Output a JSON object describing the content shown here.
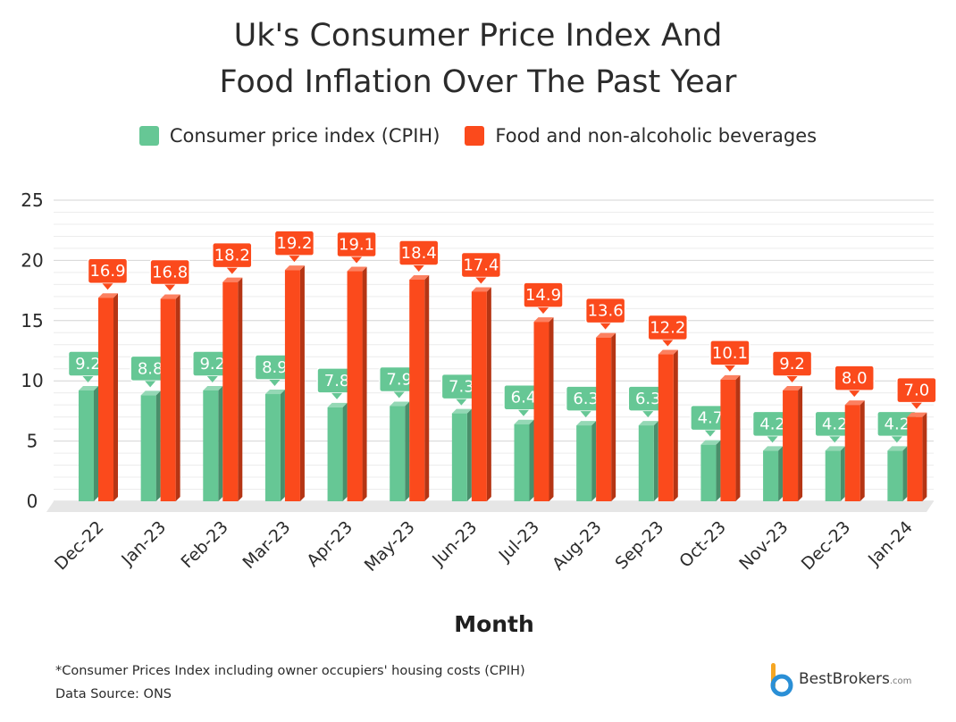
{
  "title_line1": "Uk's Consumer Price Index And",
  "title_line2": "Food Inflation Over The Past Year",
  "legend": [
    {
      "label": "Consumer price index (CPIH)",
      "color": "#66c795"
    },
    {
      "label": "Food and non-alcoholic beverages",
      "color": "#fb4a1c"
    }
  ],
  "footnote_line1": "*Consumer Prices Index including owner occupiers' housing costs (CPIH)",
  "footnote_line2": "Data Source: ONS",
  "logo": {
    "name": "BestBrokers",
    "suffix": ".com",
    "icon": "bestbrokers-logo-icon"
  },
  "chart_data": {
    "type": "bar",
    "xlabel": "Month",
    "ylabel": "",
    "ylim": [
      0,
      25
    ],
    "yticks": [
      0,
      5,
      10,
      15,
      20,
      25
    ],
    "grid": true,
    "legend_position": "top",
    "categories": [
      "Dec-22",
      "Jan-23",
      "Feb-23",
      "Mar-23",
      "Apr-23",
      "May-23",
      "Jun-23",
      "Jul-23",
      "Aug-23",
      "Sep-23",
      "Oct-23",
      "Nov-23",
      "Dec-23",
      "Jan-24"
    ],
    "series": [
      {
        "name": "Consumer price index (CPIH)",
        "color": "#66c795",
        "values": [
          9.2,
          8.8,
          9.2,
          8.9,
          7.8,
          7.9,
          7.3,
          6.4,
          6.3,
          6.3,
          4.7,
          4.2,
          4.2,
          4.2
        ],
        "labels": [
          "9.2",
          "8.8",
          "9.2",
          "8.9",
          "7.8",
          "7.9",
          "7.3",
          "6.4",
          "6.3",
          "6.3",
          "4.7",
          "4.2",
          "4.2",
          "4.2"
        ]
      },
      {
        "name": "Food and non-alcoholic beverages",
        "color": "#fb4a1c",
        "values": [
          16.9,
          16.8,
          18.2,
          19.2,
          19.1,
          18.4,
          17.4,
          14.9,
          13.6,
          12.2,
          10.1,
          9.2,
          8.0,
          7.0
        ],
        "labels": [
          "16.9",
          "16.8",
          "18.2",
          "19.2",
          "19.1",
          "18.4",
          "17.4",
          "14.9",
          "13.6",
          "12.2",
          "10.1",
          "9.2",
          "8.0",
          "7.0"
        ]
      }
    ]
  }
}
